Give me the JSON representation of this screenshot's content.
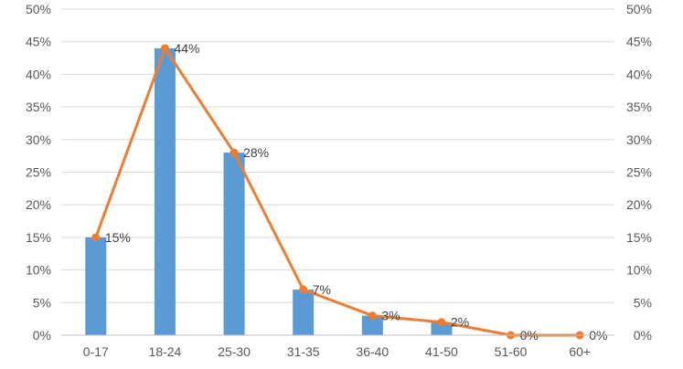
{
  "chart_data": {
    "type": "bar",
    "title": "",
    "xlabel": "",
    "ylabel": "",
    "categories": [
      "0-17",
      "18-24",
      "25-30",
      "31-35",
      "36-40",
      "41-50",
      "51-60",
      "60+"
    ],
    "series": [
      {
        "type": "bar",
        "axis": "left",
        "values": [
          15,
          44,
          28,
          7,
          3,
          2,
          0,
          0
        ],
        "color": "#5b9bd5"
      },
      {
        "type": "line",
        "axis": "right",
        "values": [
          15,
          44,
          28,
          7,
          3,
          2,
          0,
          0
        ],
        "color": "#ed7d31"
      }
    ],
    "data_labels": [
      "15%",
      "44%",
      "28%",
      "7%",
      "3%",
      "2%",
      "0%",
      "0%"
    ],
    "ylim": [
      0,
      50
    ],
    "y2lim": [
      0,
      50
    ],
    "yticks": [
      "0%",
      "5%",
      "10%",
      "15%",
      "20%",
      "25%",
      "30%",
      "35%",
      "40%",
      "45%",
      "50%"
    ],
    "y2ticks": [
      "0%",
      "5%",
      "10%",
      "15%",
      "20%",
      "25%",
      "30%",
      "35%",
      "40%",
      "45%",
      "50%"
    ],
    "ytick_values": [
      0,
      5,
      10,
      15,
      20,
      25,
      30,
      35,
      40,
      45,
      50
    ],
    "grid": true,
    "gridline_color": "#d9d9d9",
    "axis_color": "#bfbfbf",
    "legend": "none"
  }
}
